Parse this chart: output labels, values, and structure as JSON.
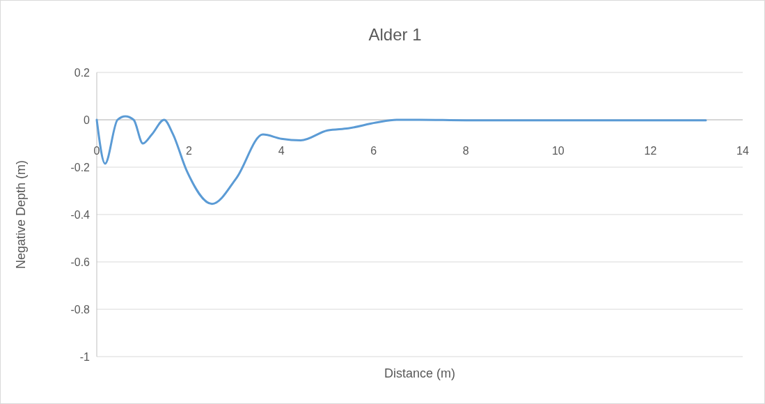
{
  "chart_data": {
    "type": "line",
    "title": "Alder 1",
    "xlabel": "Distance (m)",
    "ylabel": "Negative Depth (m)",
    "series": [
      {
        "color": "#5b9bd5",
        "x": [
          0,
          0.18,
          0.45,
          0.62,
          0.8,
          1.0,
          1.2,
          1.46,
          1.65,
          1.95,
          2.5,
          3.03,
          3.6,
          4.0,
          4.42,
          5.0,
          5.45,
          6.05,
          6.5,
          7,
          8,
          10,
          12,
          13.2
        ],
        "values": [
          0,
          -0.185,
          0,
          0.015,
          0,
          -0.1,
          -0.06,
          0,
          -0.06,
          -0.215,
          -0.355,
          -0.245,
          -0.062,
          -0.08,
          -0.087,
          -0.045,
          -0.036,
          -0.012,
          0,
          0,
          -0.002,
          -0.002,
          -0.002,
          -0.002
        ]
      }
    ],
    "xlim": [
      0,
      14
    ],
    "xticks": [
      0,
      2,
      4,
      6,
      8,
      10,
      12,
      14
    ],
    "ylim": [
      -1,
      0.2
    ],
    "yticks": [
      -1,
      -0.8,
      -0.6,
      -0.4,
      -0.2,
      0,
      0.2
    ],
    "grid": "y",
    "marker": "none",
    "line_style": "solid"
  }
}
